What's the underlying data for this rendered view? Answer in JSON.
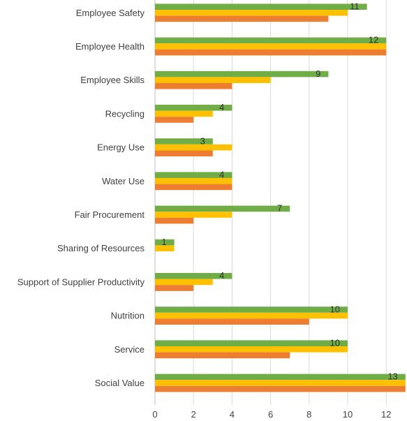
{
  "chart_data": {
    "type": "bar",
    "orientation": "horizontal",
    "categories": [
      "Employee Safety",
      "Employee Health",
      "Employee Skills",
      "Recycling",
      "Energy Use",
      "Water Use",
      "Fair Procurement",
      "Sharing of Resources",
      "Support of Supplier Productivity",
      "Nutrition",
      "Service",
      "Social Value"
    ],
    "series": [
      {
        "color": "#70ad47",
        "values": [
          11,
          12,
          9,
          4,
          3,
          4,
          7,
          1,
          4,
          10,
          10,
          13
        ],
        "show_labels": true
      },
      {
        "color": "#ffc000",
        "values": [
          10,
          12,
          6,
          3,
          4,
          4,
          4,
          1,
          3,
          10,
          10,
          13
        ],
        "show_labels": false
      },
      {
        "color": "#ed7d31",
        "values": [
          9,
          12,
          4,
          2,
          3,
          4,
          2,
          0,
          2,
          8,
          7,
          13
        ],
        "show_labels": false
      }
    ],
    "x_ticks": [
      "0",
      "2",
      "4",
      "6",
      "8",
      "10",
      "12"
    ],
    "xlim": [
      0,
      13
    ],
    "title": "",
    "xlabel": "",
    "ylabel": "",
    "grid": true,
    "legend": "none"
  }
}
